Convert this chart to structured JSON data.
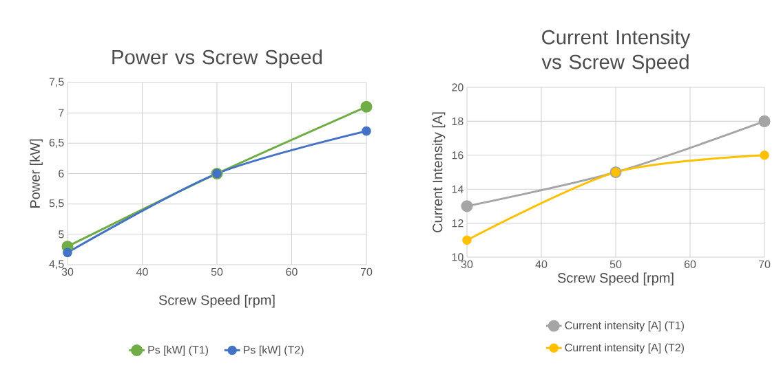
{
  "chart_data": [
    {
      "type": "line",
      "title": "Power vs Screw Speed",
      "xlabel": "Screw Speed [rpm]",
      "ylabel": "Power [kW]",
      "x": [
        30,
        50,
        70
      ],
      "series": [
        {
          "name": "Ps [kW] (T1)",
          "color": "#70ad47",
          "values": [
            4.8,
            6.0,
            7.1
          ]
        },
        {
          "name": "Ps [kW] (T2)",
          "color": "#4472c4",
          "values": [
            4.7,
            6.0,
            6.7
          ]
        }
      ],
      "xlim": [
        30,
        70
      ],
      "xticks": [
        30,
        40,
        50,
        60,
        70
      ],
      "ylim": [
        4.5,
        7.5
      ],
      "yticks": [
        {
          "value": 4.5,
          "label": "4,5"
        },
        5,
        {
          "value": 5.5,
          "label": "5,5"
        },
        6,
        {
          "value": 6.5,
          "label": "6,5"
        },
        7,
        {
          "value": 7.5,
          "label": "7,5"
        }
      ],
      "grid": true,
      "legend": "bottom",
      "marker": "circle"
    },
    {
      "type": "line",
      "title": "Current Intensity vs Screw Speed",
      "xlabel": "Screw Speed [rpm]",
      "ylabel": "Current Intensity [A]",
      "x": [
        30,
        50,
        70
      ],
      "series": [
        {
          "name": "Current intensity [A] (T1)",
          "color": "#a5a5a5",
          "values": [
            13,
            15,
            18
          ]
        },
        {
          "name": "Current intensity [A] (T2)",
          "color": "#ffc000",
          "values": [
            11,
            15,
            16
          ]
        }
      ],
      "xlim": [
        30,
        70
      ],
      "xticks": [
        30,
        40,
        50,
        60,
        70
      ],
      "ylim": [
        10,
        20
      ],
      "yticks": [
        10,
        12,
        14,
        16,
        18,
        20
      ],
      "grid": true,
      "legend": "bottom",
      "marker": "circle"
    }
  ]
}
